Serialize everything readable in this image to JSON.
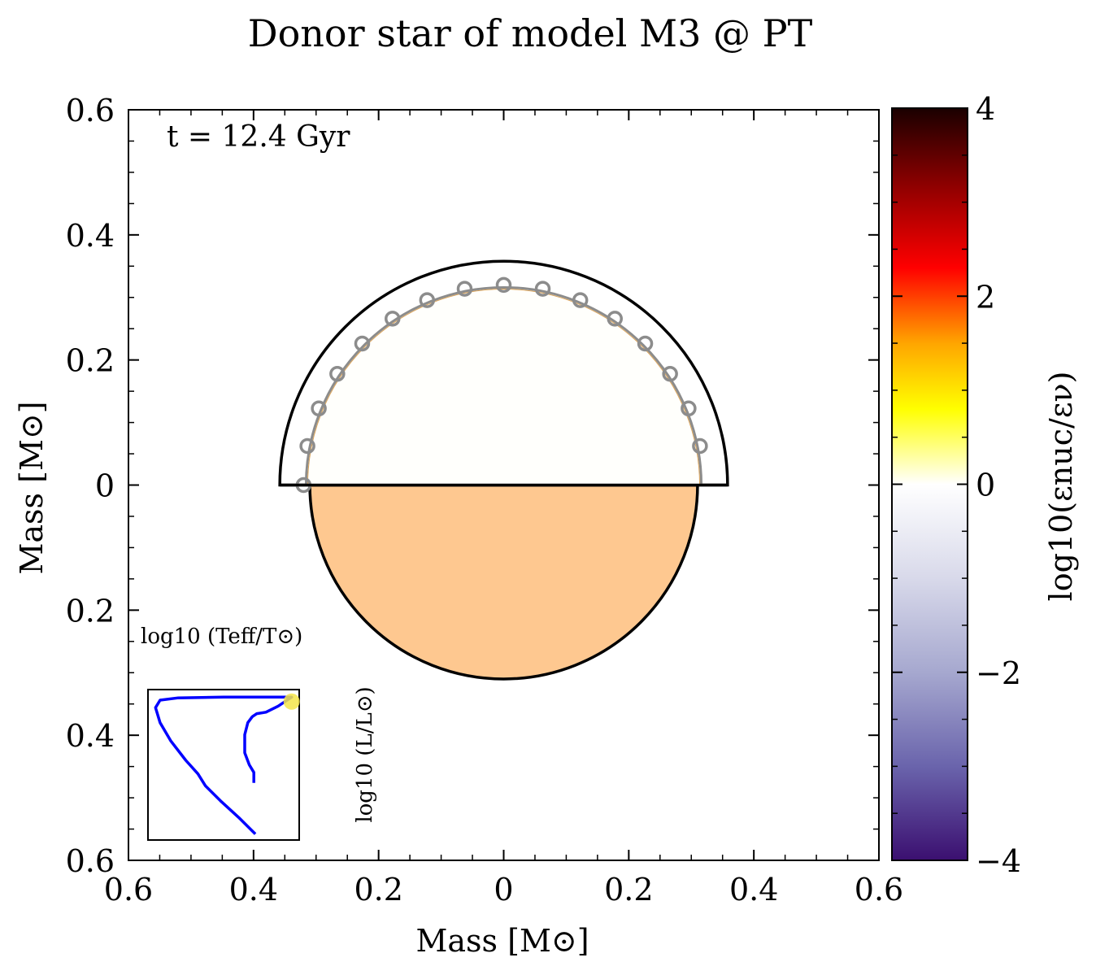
{
  "chart_data": {
    "type": "scatter",
    "title": "Donor star of model M3 @ PT",
    "annotation": "t = 12.4 Gyr",
    "xlabel": "Mass [M⊙]",
    "ylabel": "Mass [M⊙]",
    "xlim": [
      -0.6,
      0.6
    ],
    "ylim": [
      -0.6,
      0.6
    ],
    "x_ticks": [
      -0.6,
      -0.4,
      -0.2,
      0,
      0.2,
      0.4,
      0.6
    ],
    "x_tick_labels": [
      "0.6",
      "0.4",
      "0.2",
      "0",
      "0.2",
      "0.4",
      "0.6"
    ],
    "y_ticks": [
      0.6,
      0.4,
      0.2,
      0,
      -0.2,
      -0.4,
      -0.6
    ],
    "y_tick_labels": [
      "0.6",
      "0.4",
      "0.2",
      "0",
      "0.2",
      "0.4",
      "0.6"
    ],
    "grid": false,
    "star": {
      "upper_half": {
        "outer_radius": 0.358,
        "core_radius": 0.316,
        "core_color": "#fffffc",
        "envelope_markers": {
          "radius": 0.32,
          "count": 16,
          "color": "#8c8c8c",
          "shape": "open-circle"
        }
      },
      "lower_half": {
        "radius": 0.31,
        "color": "#fec890"
      }
    },
    "colorbar": {
      "label": "log10(εnuc/εν)",
      "range": [
        -4,
        4
      ],
      "ticks": [
        4,
        2,
        0,
        -2,
        -4
      ],
      "tick_labels": [
        "4",
        "2",
        "0",
        "−2",
        "−4"
      ],
      "colormap_stops": [
        {
          "value": -4,
          "color": "#3b0f70"
        },
        {
          "value": -3,
          "color": "#6a64ac"
        },
        {
          "value": -2,
          "color": "#a6a8cf"
        },
        {
          "value": -1,
          "color": "#d8d9ea"
        },
        {
          "value": 0,
          "color": "#ffffff"
        },
        {
          "value": 0.8,
          "color": "#ffff00"
        },
        {
          "value": 1.5,
          "color": "#ffa500"
        },
        {
          "value": 2.3,
          "color": "#ff0000"
        },
        {
          "value": 3.2,
          "color": "#8b0000"
        },
        {
          "value": 4,
          "color": "#1a0000"
        }
      ]
    },
    "inset_hr_diagram": {
      "xlabel": "log10 (Teff/T⊙)",
      "ylabel": "log10 (L/L⊙)",
      "track_color": "#0000ff",
      "current_marker_color": "#f5e54a",
      "track_shape": "normalized"
    }
  }
}
